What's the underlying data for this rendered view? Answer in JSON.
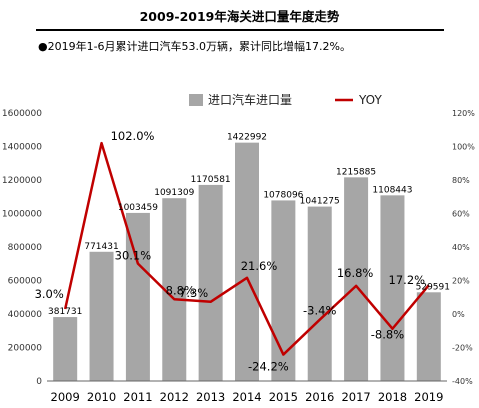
{
  "header": {
    "title": "2009-2019年海关进口量年度走势",
    "subtitle": "●2019年1-6月累计进口汽车53.0万辆，累计同比增幅17.2%。"
  },
  "colors": {
    "bar": "#a6a6a6",
    "line": "#c00000",
    "axis": "#666666"
  },
  "chart_data": {
    "type": "bar",
    "categories": [
      "2009",
      "2010",
      "2011",
      "2012",
      "2013",
      "2014",
      "2015",
      "2016",
      "2017",
      "2018",
      "2019"
    ],
    "series": [
      {
        "name": "进口汽车进口量",
        "type": "bar",
        "axis": "left",
        "values": [
          381731,
          771431,
          1003459,
          1091309,
          1170581,
          1422992,
          1078096,
          1041275,
          1215885,
          1108443,
          529591
        ],
        "labels": [
          "381731",
          "771431",
          "1003459",
          "1091309",
          "1170581",
          "1422992",
          "1078096",
          "1041275",
          "1215885",
          "1108443",
          "529591"
        ]
      },
      {
        "name": "YOY",
        "type": "line",
        "axis": "right",
        "values": [
          3.0,
          102.0,
          30.1,
          8.8,
          7.3,
          21.6,
          -24.2,
          -3.4,
          16.8,
          -8.8,
          17.2
        ],
        "labels": [
          "3.0%",
          "102.0%",
          "30.1%",
          "8.8%",
          "7.3%",
          "21.6%",
          "-24.2%",
          "-3.4%",
          "16.8%",
          "-8.8%",
          "17.2%"
        ]
      }
    ],
    "left_axis": {
      "ylim": [
        0,
        1600000
      ],
      "ticks": [
        "0",
        "200000",
        "400000",
        "600000",
        "800000",
        "1000000",
        "1200000",
        "1400000",
        "1600000"
      ]
    },
    "right_axis": {
      "ylim": [
        -40,
        120
      ],
      "ticks": [
        "-40%",
        "-20%",
        "0%",
        "20%",
        "40%",
        "60%",
        "80%",
        "100%",
        "120%"
      ]
    },
    "legend_position": "top",
    "grid": false
  }
}
